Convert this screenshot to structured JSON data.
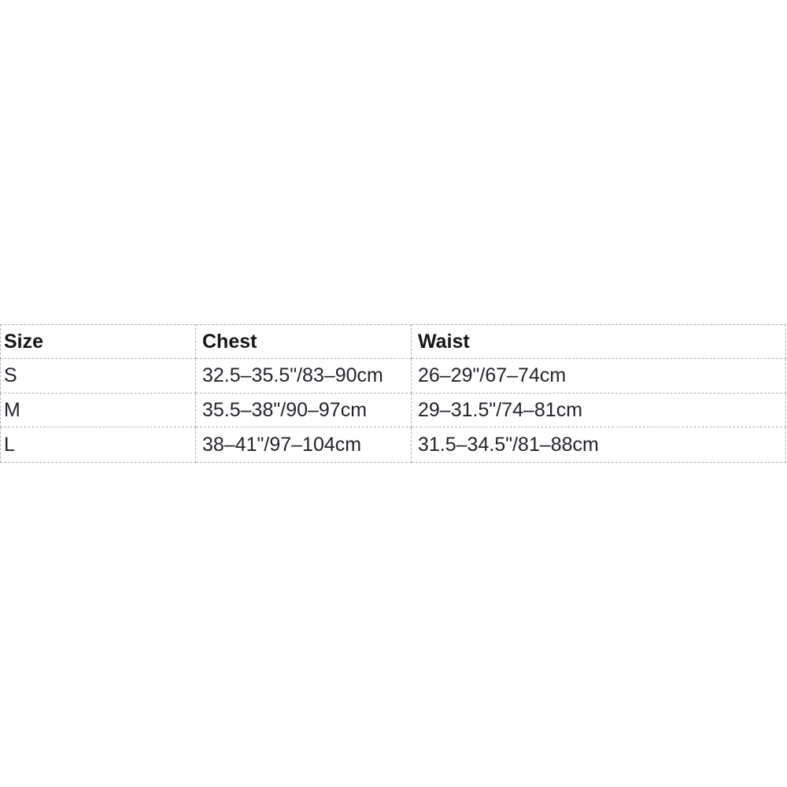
{
  "size_chart": {
    "headers": [
      "Size",
      "Chest",
      "Waist"
    ],
    "rows": [
      {
        "size": "S",
        "chest": "32.5–35.5\"/83–90cm",
        "waist": "26–29\"/67–74cm"
      },
      {
        "size": "M",
        "chest": "35.5–38\"/90–97cm",
        "waist": "29–31.5\"/74–81cm"
      },
      {
        "size": "L",
        "chest": "38–41\"/97–104cm",
        "waist": "31.5–34.5\"/81–88cm"
      }
    ],
    "border_color": "#b0b0b0",
    "header_text_color": "#161616",
    "body_text_color": "#23232b"
  }
}
